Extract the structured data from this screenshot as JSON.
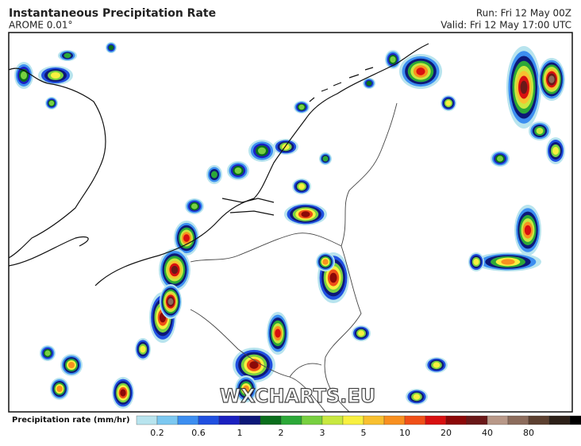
{
  "header": {
    "title": "Instantaneous Precipitation Rate",
    "model": "AROME 0.01°",
    "run": "Run: Fri 12 May 00Z",
    "valid": "Valid: Fri 12 May 17:00 UTC"
  },
  "watermark": "WXCHARTS.EU",
  "colorbar": {
    "label": "Precipitation rate (mm/hr)",
    "colors": [
      "#b8e4ee",
      "#7cc8f0",
      "#3c8ef0",
      "#2050e0",
      "#1a20c0",
      "#0c1878",
      "#0a6e1c",
      "#2ca838",
      "#78d040",
      "#c8e840",
      "#f8f040",
      "#f8c030",
      "#f89020",
      "#f05018",
      "#d81010",
      "#8c0808",
      "#6a1818",
      "#b89888",
      "#8c6c5c",
      "#5c4030",
      "#2c2018",
      "#000000",
      "#6a6a6a",
      "#bcbcbc",
      "#e8e8e8"
    ],
    "ticks": [
      "0.2",
      "0.6",
      "1",
      "2",
      "3",
      "5",
      "10",
      "20",
      "40",
      "80"
    ]
  }
}
